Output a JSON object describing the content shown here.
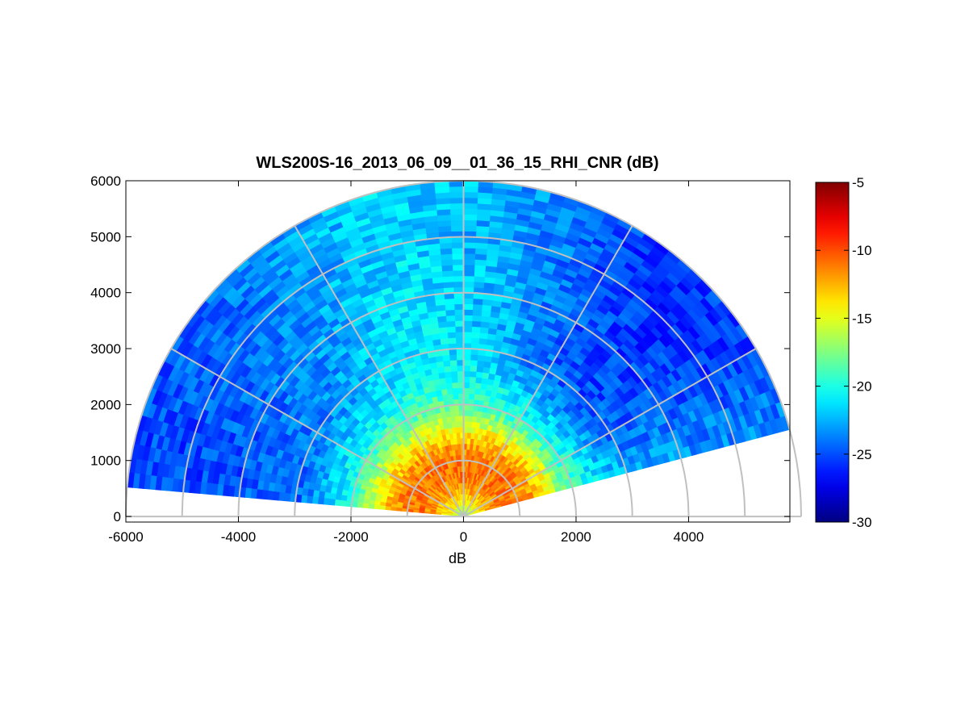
{
  "chart_data": {
    "type": "heatmap",
    "subtype": "polar-RHI-sector",
    "title": "WLS200S-16_2013_06_09__01_36_15_RHI_CNR (dB)",
    "xlabel": "dB",
    "ylabel": "",
    "xlim": [
      -6000,
      5800
    ],
    "ylim": [
      -100,
      6000
    ],
    "x_ticks": [
      -6000,
      -4000,
      -2000,
      0,
      2000,
      4000
    ],
    "x_tick_labels": [
      "-6000",
      "-4000",
      "-2000",
      "0",
      "2000",
      "4000"
    ],
    "y_ticks": [
      0,
      1000,
      2000,
      3000,
      4000,
      5000,
      6000
    ],
    "y_tick_labels": [
      "0",
      "1000",
      "2000",
      "3000",
      "4000",
      "5000",
      "6000"
    ],
    "grid": true,
    "polar_grid": {
      "range_rings": [
        1000,
        2000,
        3000,
        4000,
        5000,
        6000
      ],
      "spokes_deg": [
        0,
        30,
        60,
        90,
        120,
        150,
        180
      ]
    },
    "scan": {
      "elevation_start_deg": 15,
      "elevation_end_deg": 175,
      "max_range": 6000
    },
    "colorbar": {
      "colormap": "jet",
      "clim": [
        -30,
        -5
      ],
      "ticks": [
        -5,
        -10,
        -15,
        -20,
        -25,
        -30
      ],
      "tick_labels": [
        "-5",
        "-10",
        "-15",
        "-20",
        "-25",
        "-30"
      ]
    },
    "cnr_by_range": {
      "range": [
        0,
        250,
        500,
        750,
        1000,
        1250,
        1500,
        1750,
        2000,
        2500,
        3000,
        4000,
        5000,
        6000
      ],
      "cnr_db": [
        -18,
        -14,
        -12,
        -11,
        -11,
        -12,
        -14,
        -16,
        -18,
        -20,
        -22,
        -23,
        -24,
        -24
      ]
    },
    "cnr_by_elevation_far": {
      "elevation_deg": [
        15,
        30,
        45,
        60,
        75,
        90,
        105,
        120,
        135,
        150,
        165,
        175
      ],
      "cnr_db": [
        -23,
        -26,
        -27,
        -26,
        -23,
        -21,
        -20,
        -22,
        -24,
        -25,
        -26,
        -26
      ]
    }
  }
}
